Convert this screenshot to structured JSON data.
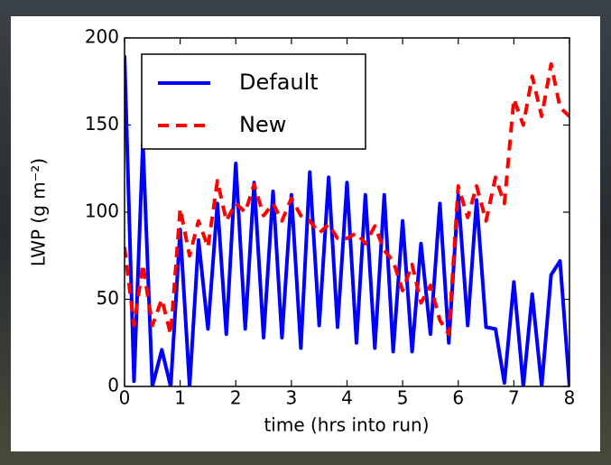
{
  "chart_data": {
    "type": "line",
    "xlabel": "time (hrs into run)",
    "ylabel": "LWP (g m⁻²)",
    "x": [
      0,
      0.17,
      0.33,
      0.5,
      0.67,
      0.83,
      1,
      1.17,
      1.33,
      1.5,
      1.67,
      1.83,
      2,
      2.17,
      2.33,
      2.5,
      2.67,
      2.83,
      3,
      3.17,
      3.33,
      3.5,
      3.67,
      3.83,
      4,
      4.17,
      4.33,
      4.5,
      4.67,
      4.83,
      5,
      5.17,
      5.33,
      5.5,
      5.67,
      5.83,
      6,
      6.17,
      6.33,
      6.5,
      6.67,
      6.83,
      7,
      7.17,
      7.33,
      7.5,
      7.67,
      7.83,
      8
    ],
    "series": [
      {
        "name": "Default",
        "color": "#0000ff",
        "dash": "solid",
        "values": [
          190,
          3,
          140,
          0,
          21,
          0,
          90,
          0,
          84,
          33,
          105,
          30,
          128,
          33,
          117,
          28,
          112,
          28,
          110,
          22,
          123,
          35,
          120,
          34,
          117,
          25,
          110,
          22,
          110,
          20,
          95,
          20,
          82,
          30,
          105,
          25,
          110,
          35,
          107,
          34,
          33,
          2,
          60,
          0,
          53,
          0,
          64,
          72,
          0
        ]
      },
      {
        "name": "New",
        "color": "#ff0000",
        "dash": "dashed",
        "values": [
          80,
          35,
          70,
          35,
          50,
          30,
          102,
          75,
          95,
          80,
          118,
          95,
          105,
          100,
          116,
          98,
          105,
          95,
          108,
          98,
          95,
          88,
          93,
          85,
          85,
          88,
          82,
          92,
          78,
          72,
          55,
          70,
          48,
          58,
          38,
          30,
          115,
          97,
          115,
          95,
          120,
          105,
          165,
          150,
          178,
          155,
          185,
          160,
          155
        ]
      }
    ],
    "xlim": [
      0,
      8
    ],
    "xticks": [
      0,
      1,
      2,
      3,
      4,
      5,
      6,
      7,
      8
    ],
    "ylim": [
      0,
      200
    ],
    "yticks": [
      0,
      50,
      100,
      150,
      200
    ],
    "grid": false,
    "legend": "upper left"
  }
}
